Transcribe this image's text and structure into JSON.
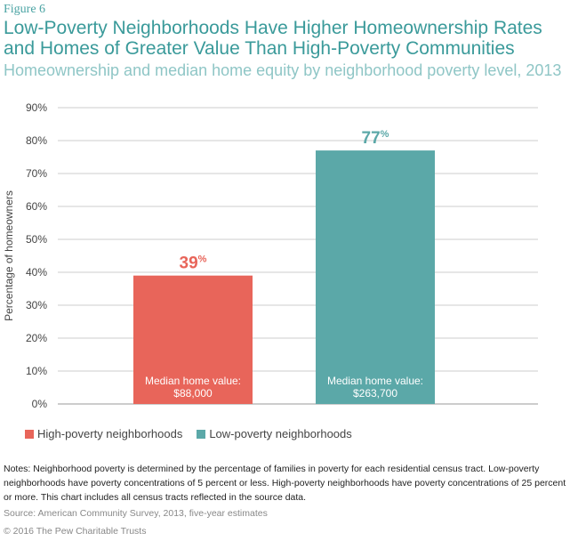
{
  "figure_label": "Figure 6",
  "title": "Low-Poverty Neighborhoods Have Higher Homeownership Rates and Homes of Greater Value Than High-Poverty Communities",
  "subtitle": "Homeownership and median home equity by neighborhood poverty level, 2013",
  "chart_data": {
    "type": "bar",
    "categories": [
      "High-poverty neighborhoods",
      "Low-poverty neighborhoods"
    ],
    "values": [
      39,
      77
    ],
    "data_labels": [
      "39%",
      "77%"
    ],
    "bar_annotations": [
      [
        "Median home value:",
        "$88,000"
      ],
      [
        "Median home value:",
        "$263,700"
      ]
    ],
    "colors": [
      "#e8655a",
      "#5ba8a8"
    ],
    "ylabel": "Percentage of homeowners",
    "ylim": [
      0,
      90
    ],
    "yticks": [
      "0%",
      "10%",
      "20%",
      "30%",
      "40%",
      "50%",
      "60%",
      "70%",
      "80%",
      "90%"
    ],
    "grid": true,
    "legend_position": "bottom-left"
  },
  "legend": [
    "High-poverty neighborhoods",
    "Low-poverty neighborhoods"
  ],
  "notes": "Notes: Neighborhood poverty is determined by the percentage of families in poverty for each residential census tract. Low-poverty neighborhoods have poverty concentrations of 5 percent or less. High-poverty neighborhoods have poverty concentrations of 25 percent or more. This chart includes all census tracts reflected in the source data.",
  "source": "Source: American Community Survey, 2013, five-year estimates",
  "copyright": "© 2016 The Pew Charitable Trusts"
}
